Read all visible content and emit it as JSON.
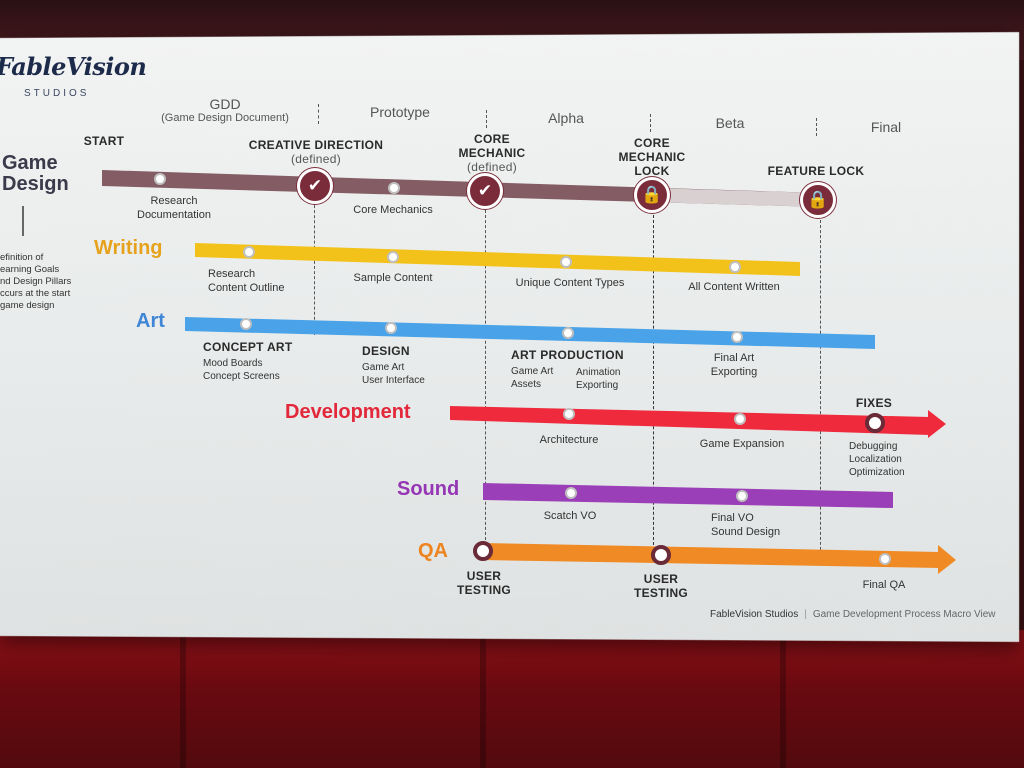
{
  "logo": {
    "name": "FableVision",
    "sub": "STUDIOS"
  },
  "phases": [
    {
      "label": "GDD",
      "sub": "(Game Design Document)"
    },
    {
      "label": "Prototype",
      "sub": ""
    },
    {
      "label": "Alpha",
      "sub": ""
    },
    {
      "label": "Beta",
      "sub": ""
    },
    {
      "label": "Final",
      "sub": ""
    }
  ],
  "game_design": {
    "title_line1": "Game",
    "title_line2": "Design",
    "start": "START",
    "creative_direction": "CREATIVE DIRECTION",
    "creative_direction_sub": "(defined)",
    "core_mechanic_line1": "CORE",
    "core_mechanic_line2": "MECHANIC",
    "core_mechanic_sub": "(defined)",
    "cm_lock_line1": "CORE",
    "cm_lock_line2": "MECHANIC",
    "cm_lock_line3": "LOCK",
    "feature_lock": "FEATURE LOCK",
    "research_line1": "Research",
    "research_line2": "Documentation",
    "core_mechanics": "Core Mechanics",
    "note_lines": [
      "efinition of",
      "earning Goals",
      "nd Design Pillars",
      "ccurs at the start",
      "game design"
    ]
  },
  "writing": {
    "title": "Writing",
    "research_line1": "Research",
    "research_line2": "Content Outline",
    "sample": "Sample Content",
    "unique": "Unique Content Types",
    "all": "All Content Written"
  },
  "art": {
    "title": "Art",
    "concept_head": "CONCEPT ART",
    "concept_1": "Mood Boards",
    "concept_2": "Concept Screens",
    "design_head": "DESIGN",
    "design_1": "Game Art",
    "design_2": "User Interface",
    "prod_head": "ART PRODUCTION",
    "prod_1": "Game Art",
    "prod_2": "Assets",
    "prod_3": "Animation",
    "prod_4": "Exporting",
    "final_line1": "Final Art",
    "final_line2": "Exporting"
  },
  "development": {
    "title": "Development",
    "architecture": "Architecture",
    "expansion": "Game Expansion",
    "fixes": "FIXES",
    "fix_1": "Debugging",
    "fix_2": "Localization",
    "fix_3": "Optimization"
  },
  "sound": {
    "title": "Sound",
    "scratch": "Scatch VO",
    "final_line1": "Final VO",
    "final_line2": "Sound Design"
  },
  "qa": {
    "title": "QA",
    "user_testing_1_line1": "USER",
    "user_testing_1_line2": "TESTING",
    "user_testing_2_line1": "USER",
    "user_testing_2_line2": "TESTING",
    "final": "Final QA"
  },
  "footer": {
    "brand": "FableVision Studios",
    "caption": "Game Development Process Macro View"
  },
  "colors": {
    "game_design": "#7a4f58",
    "writing": "#f2c21a",
    "art": "#4aa3e8",
    "development": "#ee2a3c",
    "sound": "#9a3fb8",
    "qa": "#f08a24",
    "milestone": "#7a2c3a"
  }
}
